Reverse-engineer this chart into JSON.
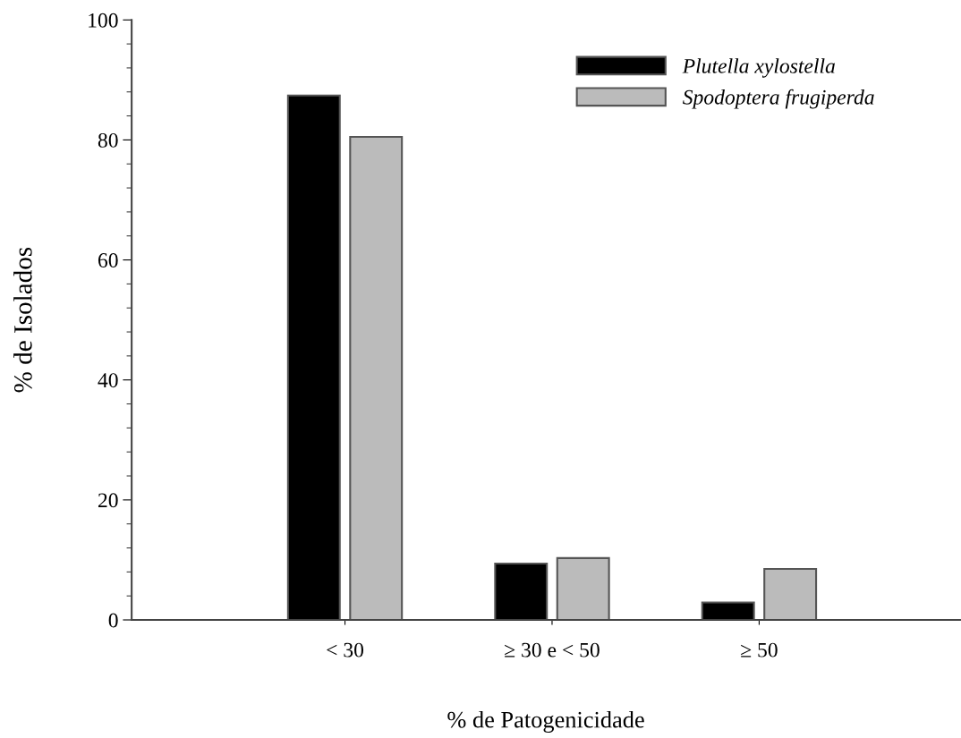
{
  "chart_data": {
    "type": "bar",
    "xlabel": "% de Patogenicidade",
    "ylabel": "% de Isolados",
    "categories": [
      "< 30",
      "≥ 30 e < 50",
      "≥ 50"
    ],
    "series": [
      {
        "name": "Plutella xylostella",
        "color": "#000000",
        "values": [
          87.4,
          9.4,
          2.9
        ]
      },
      {
        "name": "Spodoptera frugiperda",
        "color": "#bbbbbb",
        "values": [
          80.5,
          10.3,
          8.5
        ]
      }
    ],
    "ylim": [
      0,
      100
    ],
    "yticks": [
      0,
      20,
      40,
      60,
      80,
      100
    ],
    "grid": false,
    "legend": "top right"
  }
}
